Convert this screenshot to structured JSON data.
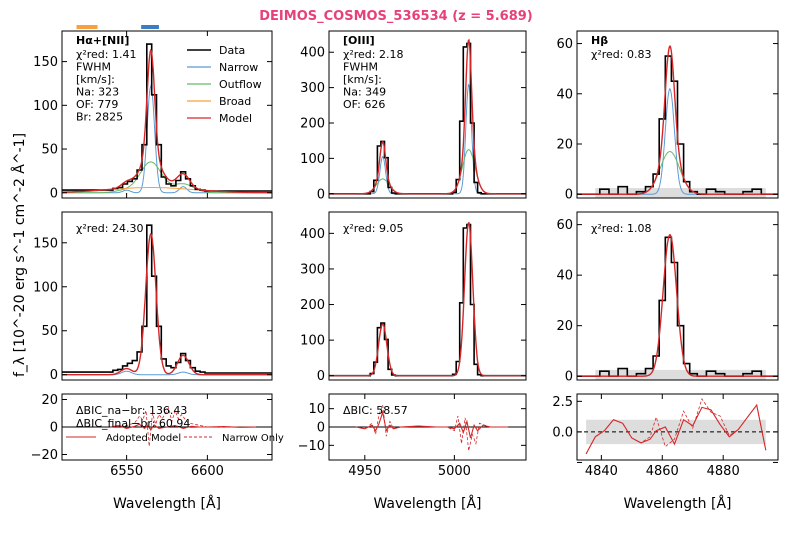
{
  "title": "DEIMOS_COSMOS_536534 (z = 5.689)",
  "title_color": "#e8407a",
  "colors": {
    "data": "#000000",
    "narrow": "#5b9bd5",
    "outflow": "#66bb66",
    "broad": "#f5a142",
    "model": "#d62728",
    "error_band": "#dddddd"
  },
  "ylabel": "f_λ [10^-20 erg s^-1 cm^-2 Å^-1]",
  "xlabel": "Wavelength [Å]",
  "legend": [
    "Data",
    "Narrow",
    "Outflow",
    "Broad",
    "Model"
  ],
  "resid_legend": [
    "Adopted Model",
    "Narrow Only"
  ],
  "chart_data": [
    {
      "type": "line",
      "panel": "halpha-fit",
      "title": "Hα+[NII]",
      "annotation": [
        "χ²red: 1.41",
        "FWHM",
        "[km/s]:",
        "Na: 323",
        "OF: 779",
        "Br: 2825"
      ],
      "xlim": [
        6510,
        6640
      ],
      "ylim": [
        -6,
        185
      ],
      "xticks": [
        6550,
        6600
      ],
      "yticks": [
        0,
        50,
        100,
        150
      ],
      "ytick_labels": [
        "0",
        "50",
        "100",
        "150"
      ],
      "markers": [
        {
          "x": [
            6519,
            6532
          ],
          "color": "#f5a142"
        },
        {
          "x": [
            6559,
            6570
          ],
          "color": "#3b7dc4"
        }
      ],
      "components": [
        {
          "name": "Narrow",
          "color": "narrow",
          "gaussians": [
            [
              6565,
              122,
              2.3
            ],
            [
              6550,
              3,
              2.3
            ],
            [
              6585,
              7,
              2.3
            ]
          ]
        },
        {
          "name": "Outflow",
          "color": "outflow",
          "gaussians": [
            [
              6565,
              35,
              6.5
            ],
            [
              6550,
              3,
              6.5
            ],
            [
              6585,
              10,
              6.5
            ]
          ]
        },
        {
          "name": "Broad",
          "color": "broad",
          "gaussians": [
            [
              6565,
              6,
              26
            ]
          ]
        }
      ],
      "model_color": "model",
      "model_gaussians": [
        [
          6565,
          122,
          2.3
        ],
        [
          6565,
          35,
          6.5
        ],
        [
          6565,
          6,
          26
        ],
        [
          6550,
          6,
          3.5
        ],
        [
          6585,
          17,
          4
        ]
      ],
      "data_x": [
        6540,
        6543,
        6546,
        6549,
        6552,
        6555,
        6558,
        6561,
        6564,
        6567,
        6570,
        6573,
        6576,
        6579,
        6582,
        6585,
        6588,
        6591,
        6594,
        6597,
        6600
      ],
      "data_y": [
        3,
        5,
        6,
        10,
        13,
        16,
        26,
        55,
        170,
        112,
        55,
        18,
        10,
        8,
        14,
        24,
        16,
        8,
        4,
        3,
        2
      ]
    },
    {
      "type": "line",
      "panel": "oiii-fit",
      "title": "[OIII]",
      "annotation": [
        "χ²red: 2.18",
        "FWHM",
        "[km/s]:",
        "Na: 349",
        "OF: 626"
      ],
      "xlim": [
        4930,
        5040
      ],
      "ylim": [
        -12,
        460
      ],
      "xticks": [],
      "yticks": [
        0,
        100,
        200,
        300,
        400
      ],
      "ytick_labels": [
        "0",
        "100",
        "200",
        "300",
        "400"
      ],
      "components": [
        {
          "name": "Narrow",
          "color": "narrow",
          "gaussians": [
            [
              4960,
              105,
              1.6
            ],
            [
              5008,
              310,
              1.6
            ]
          ]
        },
        {
          "name": "Outflow",
          "color": "outflow",
          "gaussians": [
            [
              4960,
              42,
              3.5
            ],
            [
              5008,
              125,
              3.5
            ]
          ]
        }
      ],
      "model_color": "model",
      "model_gaussians": [
        [
          4960,
          105,
          1.6
        ],
        [
          4960,
          42,
          3.5
        ],
        [
          5008,
          310,
          1.6
        ],
        [
          5008,
          125,
          3.5
        ]
      ],
      "data_x": [
        4950,
        4952,
        4954,
        4956,
        4958,
        4960,
        4962,
        4964,
        4966,
        4968,
        4996,
        4998,
        5000,
        5002,
        5004,
        5006,
        5008,
        5010,
        5012,
        5014,
        5016,
        5018
      ],
      "data_y": [
        0,
        0,
        6,
        38,
        135,
        148,
        102,
        18,
        2,
        0,
        0,
        0,
        4,
        40,
        205,
        415,
        425,
        200,
        32,
        3,
        0,
        0
      ]
    },
    {
      "type": "line",
      "panel": "hbeta-fit",
      "title": "Hβ",
      "annotation": [
        "χ²red: 0.83"
      ],
      "xlim": [
        4832,
        4898
      ],
      "ylim": [
        -1.5,
        65
      ],
      "xticks": [],
      "yticks": [
        0,
        20,
        40,
        60
      ],
      "ytick_labels": [
        "0",
        "20",
        "40",
        "60"
      ],
      "components": [
        {
          "name": "Narrow",
          "color": "narrow",
          "gaussians": [
            [
              4862.5,
              42,
              1.5
            ]
          ]
        },
        {
          "name": "Outflow",
          "color": "outflow",
          "gaussians": [
            [
              4862.5,
              17,
              3.2
            ]
          ]
        }
      ],
      "model_color": "model",
      "model_gaussians": [
        [
          4862.5,
          42,
          1.5
        ],
        [
          4862.5,
          17,
          3.2
        ]
      ],
      "band_half_width": 2.5,
      "data_x": [
        4838,
        4841,
        4844,
        4847,
        4850,
        4853,
        4856,
        4858,
        4860,
        4862,
        4864,
        4866,
        4868,
        4870,
        4873,
        4876,
        4879,
        4882,
        4885,
        4888,
        4891,
        4894
      ],
      "data_y": [
        0,
        2,
        0,
        3,
        0,
        1,
        3,
        8,
        30,
        55,
        45,
        20,
        5,
        1,
        0,
        2,
        1,
        0,
        0,
        1,
        2,
        0
      ]
    },
    {
      "type": "line",
      "panel": "halpha-narrow",
      "annotation": [
        "χ²red: 24.30"
      ],
      "xlim": [
        6510,
        6640
      ],
      "ylim": [
        -6,
        185
      ],
      "xticks": [],
      "yticks": [
        0,
        50,
        100,
        150
      ],
      "ytick_labels": [
        "0",
        "50",
        "100",
        "150"
      ],
      "components": [
        {
          "name": "Narrow",
          "color": "narrow",
          "gaussians": [
            [
              6550,
              4,
              3
            ],
            [
              6585,
              3,
              3
            ]
          ]
        }
      ],
      "model_color": "model",
      "model_gaussians": [
        [
          6565,
          160,
          3.2
        ],
        [
          6550,
          7,
          3.5
        ],
        [
          6585,
          22,
          3.5
        ]
      ],
      "data_x": [
        6540,
        6543,
        6546,
        6549,
        6552,
        6555,
        6558,
        6561,
        6564,
        6567,
        6570,
        6573,
        6576,
        6579,
        6582,
        6585,
        6588,
        6591,
        6594,
        6597,
        6600
      ],
      "data_y": [
        3,
        5,
        6,
        10,
        13,
        16,
        26,
        55,
        170,
        112,
        55,
        18,
        10,
        8,
        14,
        24,
        16,
        8,
        4,
        3,
        2
      ]
    },
    {
      "type": "line",
      "panel": "oiii-narrow",
      "annotation": [
        "χ²red: 9.05"
      ],
      "xlim": [
        4930,
        5040
      ],
      "ylim": [
        -12,
        460
      ],
      "xticks": [],
      "yticks": [
        0,
        100,
        200,
        300,
        400
      ],
      "ytick_labels": [
        "0",
        "100",
        "200",
        "300",
        "400"
      ],
      "components": [],
      "model_color": "model",
      "model_gaussians": [
        [
          4960,
          145,
          2.3
        ],
        [
          5008,
          430,
          2.3
        ]
      ],
      "data_x": [
        4950,
        4952,
        4954,
        4956,
        4958,
        4960,
        4962,
        4964,
        4966,
        4968,
        4996,
        4998,
        5000,
        5002,
        5004,
        5006,
        5008,
        5010,
        5012,
        5014,
        5016,
        5018
      ],
      "data_y": [
        0,
        0,
        6,
        38,
        135,
        148,
        102,
        18,
        2,
        0,
        0,
        0,
        4,
        40,
        205,
        415,
        425,
        200,
        32,
        3,
        0,
        0
      ]
    },
    {
      "type": "line",
      "panel": "hbeta-narrow",
      "annotation": [
        "χ²red: 1.08"
      ],
      "xlim": [
        4832,
        4898
      ],
      "ylim": [
        -1.5,
        65
      ],
      "xticks": [],
      "yticks": [
        0,
        20,
        40,
        60
      ],
      "ytick_labels": [
        "0",
        "20",
        "40",
        "60"
      ],
      "components": [],
      "model_color": "model",
      "model_gaussians": [
        [
          4862.5,
          56,
          2.2
        ]
      ],
      "band_half_width": 2.5,
      "data_x": [
        4838,
        4841,
        4844,
        4847,
        4850,
        4853,
        4856,
        4858,
        4860,
        4862,
        4864,
        4866,
        4868,
        4870,
        4873,
        4876,
        4879,
        4882,
        4885,
        4888,
        4891,
        4894
      ],
      "data_y": [
        0,
        2,
        0,
        3,
        0,
        1,
        3,
        8,
        30,
        55,
        45,
        20,
        5,
        1,
        0,
        2,
        1,
        0,
        0,
        1,
        2,
        0
      ]
    },
    {
      "type": "line",
      "panel": "halpha-resid",
      "annotation": [
        "ΔBIC_na−br: 136.43",
        "ΔBIC_final−br: 60.94"
      ],
      "xlim": [
        6510,
        6640
      ],
      "ylim": [
        -24,
        24
      ],
      "xticks": [
        6550,
        6600
      ],
      "xtick_labels": [
        "6550",
        "6600"
      ],
      "yticks": [
        -20,
        0,
        20
      ],
      "ytick_labels": [
        "−20",
        "0",
        "20"
      ],
      "adopted_x": [
        6540,
        6545,
        6550,
        6555,
        6558,
        6561,
        6563,
        6565,
        6567,
        6570,
        6575,
        6580,
        6585,
        6590,
        6595,
        6600,
        6610,
        6620,
        6630
      ],
      "adopted_y": [
        0,
        1,
        -1,
        0.5,
        2,
        -1,
        1,
        -2,
        1.5,
        -1,
        0,
        1,
        -1,
        0.5,
        0,
        0,
        0.3,
        -0.2,
        0
      ],
      "narrow_x": [
        6540,
        6550,
        6555,
        6558,
        6560,
        6562,
        6564,
        6566,
        6568,
        6570,
        6572,
        6576,
        6578,
        6580,
        6582,
        6584,
        6588,
        6592,
        6596,
        6600,
        6610,
        6620
      ],
      "narrow_y": [
        0,
        1,
        3,
        8,
        5,
        12,
        -14,
        10,
        2,
        9,
        6,
        14,
        4,
        12,
        6,
        9,
        3,
        2,
        1,
        0,
        0,
        0
      ]
    },
    {
      "type": "line",
      "panel": "oiii-resid",
      "annotation": [
        "ΔBIC: 58.57"
      ],
      "xlim": [
        4930,
        5040
      ],
      "ylim": [
        -18,
        18
      ],
      "xticks": [
        4950,
        5000
      ],
      "xtick_labels": [
        "4950",
        "5000"
      ],
      "yticks": [
        -10,
        0,
        10
      ],
      "ytick_labels": [
        "−10",
        "0",
        "10"
      ],
      "adopted_x": [
        4945,
        4950,
        4954,
        4956,
        4958,
        4960,
        4962,
        4964,
        4966,
        4970,
        4980,
        4990,
        4996,
        5000,
        5003,
        5005,
        5007,
        5009,
        5011,
        5013,
        5016,
        5020,
        5030
      ],
      "adopted_y": [
        0,
        -1,
        1,
        -2,
        2,
        8,
        -2,
        1,
        -1,
        0,
        0.5,
        0,
        0,
        -1,
        2,
        -3,
        3,
        -6,
        1,
        -2,
        1,
        0,
        0
      ],
      "narrow_x": [
        4945,
        4950,
        4954,
        4956,
        4958,
        4960,
        4962,
        4964,
        4966,
        4970,
        4980,
        4990,
        4996,
        5000,
        5002,
        5004,
        5006,
        5008,
        5010,
        5012,
        5014,
        5017,
        5020,
        5030
      ],
      "narrow_y": [
        0,
        -1,
        2,
        -4,
        7,
        12,
        -5,
        3,
        -1,
        0,
        0.5,
        0,
        0,
        -2,
        6,
        -9,
        5,
        -13,
        -4,
        -9,
        2,
        1,
        0,
        0
      ]
    },
    {
      "type": "line",
      "panel": "hbeta-resid",
      "xlim": [
        4832,
        4898
      ],
      "ylim": [
        -2.3,
        3.1
      ],
      "xticks": [
        4840,
        4860,
        4880
      ],
      "xtick_labels": [
        "4840",
        "4860",
        "4880"
      ],
      "yticks": [
        -2.5,
        0,
        2.5
      ],
      "ytick_labels": [
        "",
        "0.0",
        "2.5"
      ],
      "dashed_zero": true,
      "band_half_width": 1.0,
      "adopted_x": [
        4835,
        4838,
        4841,
        4844,
        4847,
        4850,
        4853,
        4856,
        4858,
        4861,
        4864,
        4867,
        4870,
        4873,
        4876,
        4879,
        4882,
        4885,
        4888,
        4891,
        4894
      ],
      "adopted_y": [
        -1.8,
        -0.4,
        0.1,
        1.0,
        0.7,
        -0.5,
        -0.9,
        -0.6,
        0.1,
        0.4,
        -1.0,
        1.0,
        0.5,
        2.0,
        1.8,
        0.6,
        -0.4,
        0.2,
        1.2,
        2.2,
        -1.5
      ],
      "narrow_x": [
        4835,
        4838,
        4841,
        4844,
        4847,
        4850,
        4853,
        4856,
        4858,
        4861,
        4864,
        4867,
        4870,
        4873,
        4876,
        4879,
        4882,
        4885,
        4888,
        4891,
        4894
      ],
      "narrow_y": [
        -1.8,
        -0.4,
        0.1,
        1.0,
        0.7,
        -0.5,
        -0.9,
        -0.4,
        1.2,
        -1.2,
        -0.6,
        1.7,
        0.3,
        2.7,
        1.6,
        1.3,
        -0.3,
        0.2,
        1.2,
        2.2,
        -1.5
      ]
    }
  ]
}
